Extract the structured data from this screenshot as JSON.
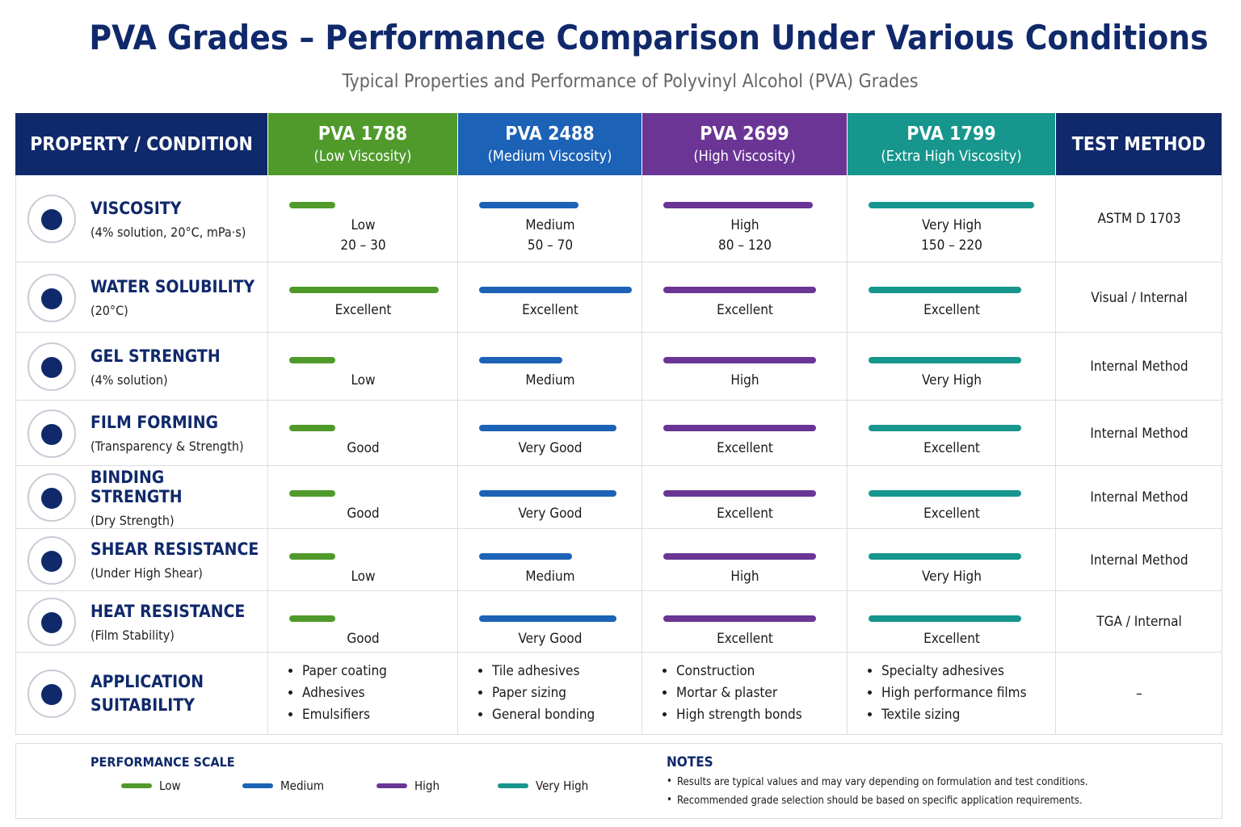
{
  "header": {
    "title": "PVA Grades – Performance Comparison Under Various Conditions",
    "subtitle": "Typical Properties and Performance of Polyvinyl Alcohol (PVA) Grades"
  },
  "table": {
    "columns": [
      {
        "name": "PROPERTY / CONDITION",
        "color": "#10296b"
      },
      {
        "name": "PVA 1788",
        "sub": "(Low Viscosity)",
        "color": "#4f9a2b"
      },
      {
        "name": "PVA 2488",
        "sub": "(Medium Viscosity)",
        "color": "#1c62b6"
      },
      {
        "name": "PVA 2699",
        "sub": "(High Viscosity)",
        "color": "#6a3595"
      },
      {
        "name": "PVA 1799",
        "sub": "(Extra High Viscosity)",
        "color": "#16968d"
      },
      {
        "name": "TEST METHOD",
        "color": "#10296b"
      }
    ],
    "rows": [
      {
        "property": "VISCOSITY",
        "condition": "(4% solution, 20°C, mPa·s)",
        "cells": [
          [
            "Low",
            "20 – 30"
          ],
          [
            "Medium",
            "50 – 70"
          ],
          [
            "High",
            "80 – 120"
          ],
          [
            "Very High",
            "150 – 220"
          ]
        ],
        "test": "ASTM D 1703"
      },
      {
        "property": "WATER SOLUBILITY",
        "condition": "(20°C)",
        "cells": [
          [
            "Excellent"
          ],
          [
            "Excellent"
          ],
          [
            "Excellent"
          ],
          [
            "Excellent"
          ]
        ],
        "test": "Visual / Internal"
      },
      {
        "property": "GEL STRENGTH",
        "condition": "(4% solution)",
        "cells": [
          [
            "Low"
          ],
          [
            "Medium"
          ],
          [
            "High"
          ],
          [
            "Very High"
          ]
        ],
        "test": "Internal Method"
      },
      {
        "property": "FILM FORMING",
        "condition": "(Transparency & Strength)",
        "cells": [
          [
            "Good"
          ],
          [
            "Very Good"
          ],
          [
            "Excellent"
          ],
          [
            "Excellent"
          ]
        ],
        "test": "Internal Method"
      },
      {
        "property": "BINDING STRENGTH",
        "condition": "(Dry Strength)",
        "cells": [
          [
            "Good"
          ],
          [
            "Very Good"
          ],
          [
            "Excellent"
          ],
          [
            "Excellent"
          ]
        ],
        "test": "Internal Method"
      },
      {
        "property": "SHEAR RESISTANCE",
        "condition": "(Under High Shear)",
        "cells": [
          [
            "Low"
          ],
          [
            "Medium"
          ],
          [
            "High"
          ],
          [
            "Very High"
          ]
        ],
        "test": "Internal Method"
      },
      {
        "property": "HEAT RESISTANCE",
        "condition": "(Film Stability)",
        "cells": [
          [
            "Good"
          ],
          [
            "Very Good"
          ],
          [
            "Excellent"
          ],
          [
            "Excellent"
          ]
        ],
        "test": "TGA / Internal"
      }
    ],
    "application": {
      "property": "APPLICATION SUITABILITY",
      "cells": [
        [
          "Paper coating",
          "Adhesives",
          "Emulsifiers"
        ],
        [
          "Tile adhesives",
          "Paper sizing",
          "General bonding"
        ],
        [
          "Construction",
          "Mortar & plaster",
          "High strength bonds"
        ],
        [
          "Specialty adhesives",
          "High performance films",
          "Textile sizing"
        ]
      ],
      "test": "–"
    }
  },
  "legend": {
    "title": "PERFORMANCE SCALE",
    "items": [
      {
        "label": "Low",
        "color": "#4f9a2b"
      },
      {
        "label": "Medium",
        "color": "#1c62b6"
      },
      {
        "label": "High",
        "color": "#6a3595"
      },
      {
        "label": "Very High",
        "color": "#16968d"
      }
    ]
  },
  "notes": {
    "title": "NOTES",
    "items": [
      "Results are typical values and may vary depending on formulation and test conditions.",
      "Recommended grade selection should be based on specific application requirements."
    ]
  }
}
